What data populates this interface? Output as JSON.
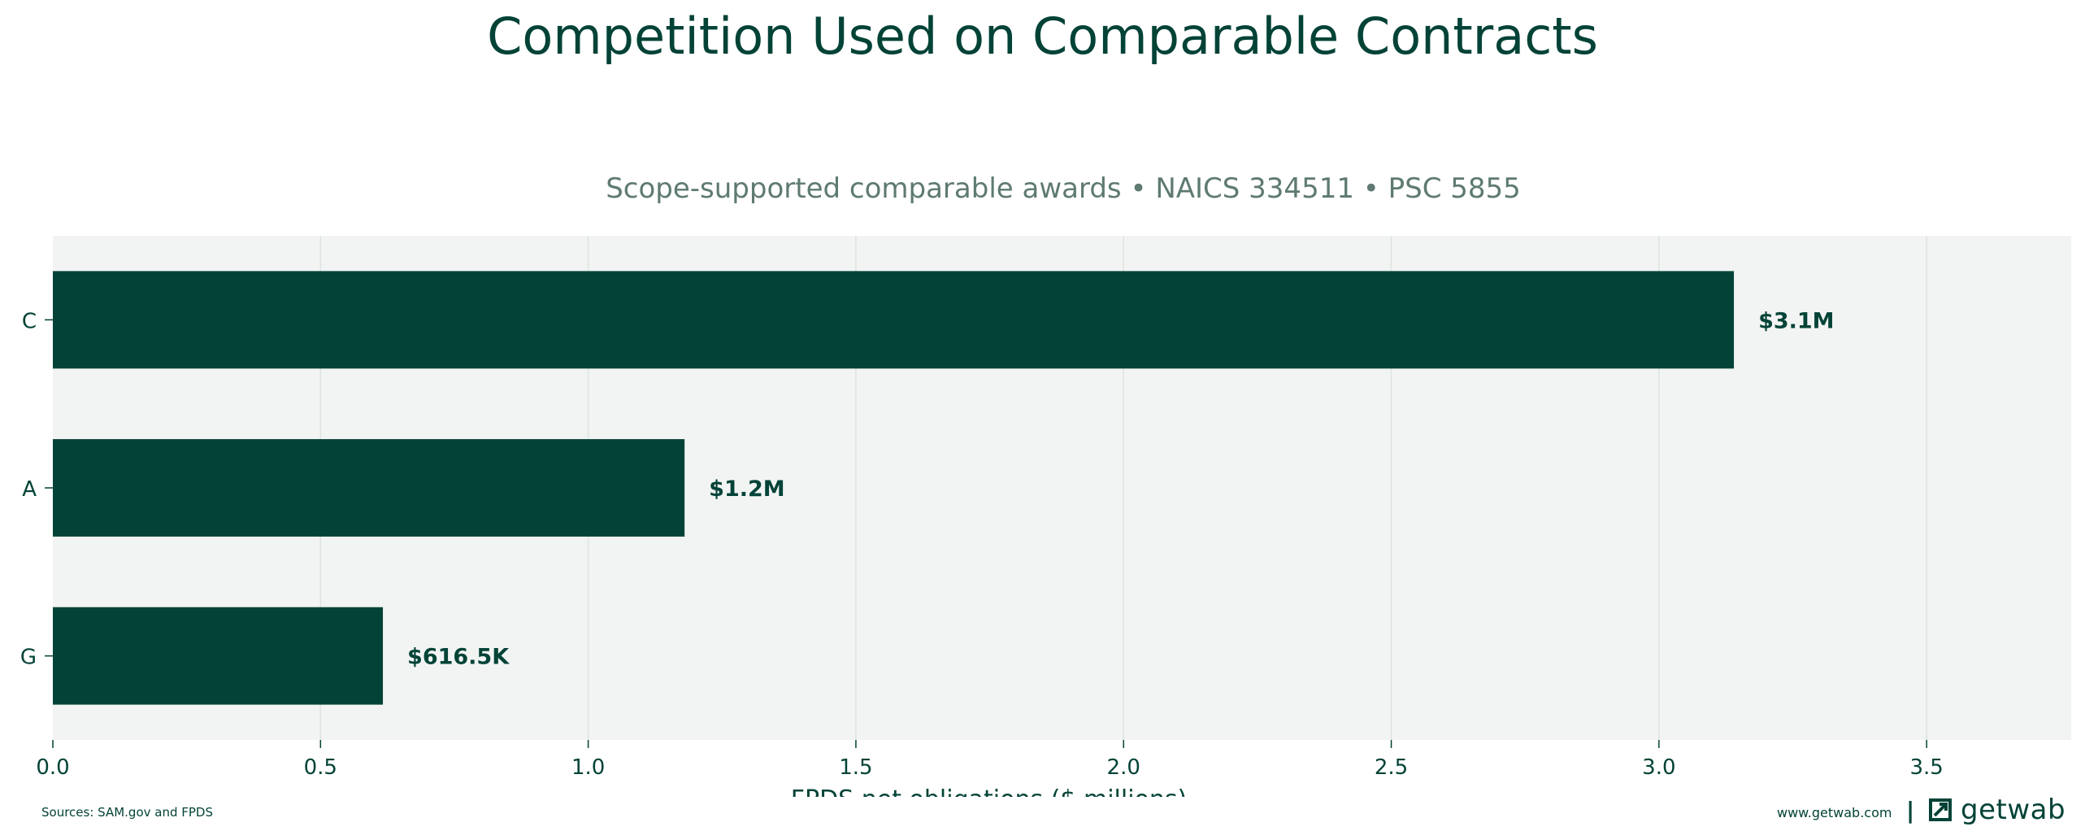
{
  "chart_data": {
    "type": "bar",
    "orientation": "horizontal",
    "title": "Competition Used on Comparable Contracts",
    "subtitle": "Scope-supported comparable awards • NAICS 334511 • PSC 5855",
    "xlabel": "FPDS net obligations ($ millions)",
    "ylabel": "",
    "categories": [
      "C",
      "A",
      "G"
    ],
    "values": [
      3.14,
      1.18,
      0.6165
    ],
    "value_labels": [
      "$3.1M",
      "$1.2M",
      "$616.5K"
    ],
    "xlim": [
      0,
      3.77
    ],
    "xticks": [
      0.0,
      0.5,
      1.0,
      1.5,
      2.0,
      2.5,
      3.0,
      3.5
    ],
    "xtick_labels": [
      "0.0",
      "0.5",
      "1.0",
      "1.5",
      "2.0",
      "2.5",
      "3.0",
      "3.5"
    ],
    "grid": "vertical",
    "legend": "none"
  },
  "colors": {
    "bar": "#034337",
    "plot_background": "#f2f4f3",
    "gridline": "#dde3e1",
    "text": "#034337",
    "subtitle": "#5e7a72"
  },
  "footer": {
    "sources": "Sources: SAM.gov and FPDS",
    "url": "www.getwab.com",
    "separator": "|",
    "brand": "getwab",
    "brand_icon": "getwab-logo-icon"
  }
}
